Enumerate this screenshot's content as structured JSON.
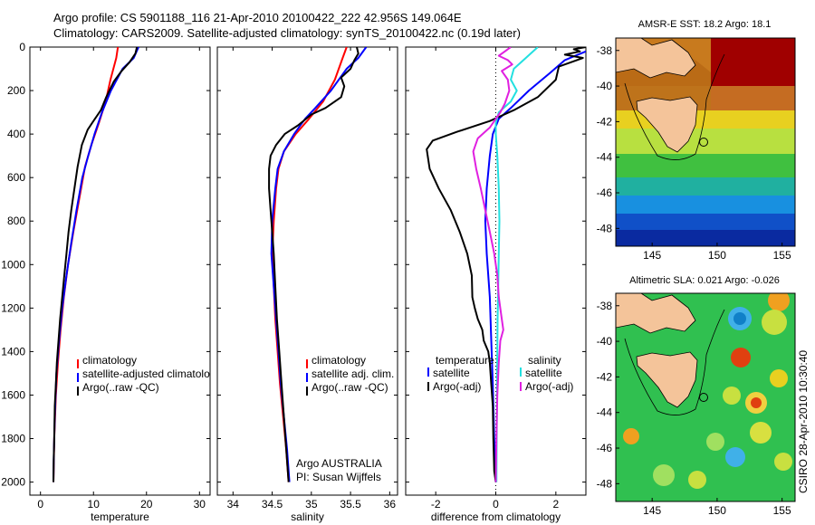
{
  "header": {
    "line1": "Argo profile: CS 5901188_116 21-Apr-2010 20100422_222 42.956S 149.064E",
    "line2": "Climatology: CARS2009. Satellite-adjusted climatology: synTS_20100422.nc (0.19d later)"
  },
  "colors": {
    "climatology": "#ff0000",
    "satellite": "#0000ff",
    "argo": "#000000",
    "sat_salinity": "#22e0e0",
    "argo_salinity": "#e020e0"
  },
  "chart_data": [
    {
      "type": "line",
      "panel": "temperature",
      "xlabel": "temperature",
      "ylabel": "",
      "xlim": [
        -2,
        32
      ],
      "ylim": [
        2060,
        0
      ],
      "y_reversed": true,
      "xticks": [
        0,
        10,
        20,
        30
      ],
      "yticks": [
        0,
        200,
        400,
        600,
        800,
        1000,
        1200,
        1400,
        1600,
        1800,
        2000
      ],
      "legend_position": "lower-right",
      "legend": [
        "climatology",
        "satellite-adjusted climatology",
        "Argo(..raw -QC)"
      ],
      "series": [
        {
          "name": "climatology",
          "color": "#ff0000",
          "points": [
            [
              14.6,
              0
            ],
            [
              14.3,
              50
            ],
            [
              13.2,
              150
            ],
            [
              12.3,
              250
            ],
            [
              11.0,
              350
            ],
            [
              9.6,
              450
            ],
            [
              8.4,
              550
            ],
            [
              7.3,
              700
            ],
            [
              6.2,
              850
            ],
            [
              5.2,
              1000
            ],
            [
              4.4,
              1150
            ],
            [
              3.8,
              1300
            ],
            [
              3.3,
              1450
            ],
            [
              2.9,
              1600
            ],
            [
              2.6,
              1800
            ],
            [
              2.45,
              2000
            ]
          ]
        },
        {
          "name": "satellite-adjusted climatology",
          "color": "#0000ff",
          "points": [
            [
              18.5,
              0
            ],
            [
              17.6,
              50
            ],
            [
              15.5,
              100
            ],
            [
              13.3,
              200
            ],
            [
              11.6,
              300
            ],
            [
              10.2,
              400
            ],
            [
              9.0,
              500
            ],
            [
              7.9,
              600
            ],
            [
              6.8,
              750
            ],
            [
              5.8,
              900
            ],
            [
              4.9,
              1050
            ],
            [
              4.1,
              1200
            ],
            [
              3.5,
              1350
            ],
            [
              3.0,
              1500
            ],
            [
              2.7,
              1700
            ],
            [
              2.5,
              1900
            ],
            [
              2.45,
              2000
            ]
          ]
        },
        {
          "name": "Argo(..raw -QC)",
          "color": "#000000",
          "points": [
            [
              18.2,
              0
            ],
            [
              17.9,
              30
            ],
            [
              16.8,
              70
            ],
            [
              15.3,
              110
            ],
            [
              13.8,
              160
            ],
            [
              12.4,
              230
            ],
            [
              11.4,
              290
            ],
            [
              10.0,
              340
            ],
            [
              8.9,
              380
            ],
            [
              7.8,
              450
            ],
            [
              7.0,
              550
            ],
            [
              6.4,
              650
            ],
            [
              5.8,
              750
            ],
            [
              5.3,
              850
            ],
            [
              4.9,
              950
            ],
            [
              4.5,
              1050
            ],
            [
              4.1,
              1150
            ],
            [
              3.7,
              1250
            ],
            [
              3.4,
              1350
            ],
            [
              3.1,
              1450
            ],
            [
              2.9,
              1550
            ],
            [
              2.7,
              1650
            ],
            [
              2.6,
              1800
            ],
            [
              2.5,
              1900
            ],
            [
              2.45,
              2000
            ]
          ]
        }
      ]
    },
    {
      "type": "line",
      "panel": "salinity",
      "xlabel": "salinity",
      "ylabel": "",
      "xlim": [
        33.8,
        36.1
      ],
      "ylim": [
        2060,
        0
      ],
      "y_reversed": true,
      "xticks": [
        34,
        34.5,
        35,
        35.5,
        36
      ],
      "yticks": [
        0,
        200,
        400,
        600,
        800,
        1000,
        1200,
        1400,
        1600,
        1800,
        2000
      ],
      "legend_position": "lower-right",
      "legend": [
        "climatology",
        "satellite adj. clim.",
        "Argo(..raw -QC)"
      ],
      "annotations": [
        "Argo AUSTRALIA",
        "PI: Susan Wijffels"
      ],
      "series": [
        {
          "name": "climatology",
          "color": "#ff0000",
          "points": [
            [
              35.45,
              0
            ],
            [
              35.4,
              50
            ],
            [
              35.3,
              150
            ],
            [
              35.15,
              250
            ],
            [
              34.97,
              330
            ],
            [
              34.8,
              400
            ],
            [
              34.65,
              480
            ],
            [
              34.58,
              560
            ],
            [
              34.55,
              650
            ],
            [
              34.52,
              800
            ],
            [
              34.5,
              950
            ],
            [
              34.52,
              1100
            ],
            [
              34.54,
              1250
            ],
            [
              34.57,
              1400
            ],
            [
              34.6,
              1550
            ],
            [
              34.64,
              1700
            ],
            [
              34.68,
              1850
            ],
            [
              34.71,
              2000
            ]
          ]
        },
        {
          "name": "satellite adj. clim.",
          "color": "#0000ff",
          "points": [
            [
              35.7,
              0
            ],
            [
              35.6,
              50
            ],
            [
              35.45,
              100
            ],
            [
              35.25,
              200
            ],
            [
              35.05,
              280
            ],
            [
              34.92,
              330
            ],
            [
              34.78,
              400
            ],
            [
              34.65,
              480
            ],
            [
              34.57,
              560
            ],
            [
              34.54,
              650
            ],
            [
              34.5,
              800
            ],
            [
              34.49,
              950
            ],
            [
              34.52,
              1100
            ],
            [
              34.55,
              1250
            ],
            [
              34.58,
              1400
            ],
            [
              34.61,
              1550
            ],
            [
              34.65,
              1700
            ],
            [
              34.69,
              1850
            ],
            [
              34.72,
              2000
            ]
          ]
        },
        {
          "name": "Argo(..raw -QC)",
          "color": "#000000",
          "points": [
            [
              35.58,
              0
            ],
            [
              35.6,
              30
            ],
            [
              35.55,
              60
            ],
            [
              35.5,
              100
            ],
            [
              35.38,
              140
            ],
            [
              35.42,
              180
            ],
            [
              35.38,
              230
            ],
            [
              35.18,
              280
            ],
            [
              35.0,
              310
            ],
            [
              34.83,
              360
            ],
            [
              34.66,
              400
            ],
            [
              34.55,
              450
            ],
            [
              34.48,
              500
            ],
            [
              34.46,
              560
            ],
            [
              34.46,
              650
            ],
            [
              34.48,
              750
            ],
            [
              34.5,
              850
            ],
            [
              34.52,
              950
            ],
            [
              34.54,
              1100
            ],
            [
              34.56,
              1250
            ],
            [
              34.59,
              1400
            ],
            [
              34.62,
              1550
            ],
            [
              34.65,
              1700
            ],
            [
              34.68,
              1850
            ],
            [
              34.71,
              2000
            ]
          ]
        }
      ]
    },
    {
      "type": "line",
      "panel": "difference",
      "xlabel": "difference from climatology",
      "ylabel": "",
      "xlim": [
        -3,
        3
      ],
      "ylim": [
        2060,
        0
      ],
      "y_reversed": true,
      "xticks": [
        -2,
        0,
        2
      ],
      "yticks": [
        0,
        200,
        400,
        600,
        800,
        1000,
        1200,
        1400,
        1600,
        1800,
        2000
      ],
      "zero_line": true,
      "legend_position": "lower-left",
      "legend_temperature": [
        "temperature",
        "satellite",
        "Argo(-adj)"
      ],
      "legend_salinity": [
        "salinity",
        "satellite",
        "Argo(-adj)"
      ],
      "series": [
        {
          "name": "temperature satellite",
          "color": "#0000ff",
          "points": [
            [
              3.0,
              20
            ],
            [
              2.3,
              60
            ],
            [
              1.8,
              120
            ],
            [
              1.1,
              200
            ],
            [
              0.5,
              280
            ],
            [
              0.1,
              330
            ],
            [
              -0.1,
              400
            ],
            [
              -0.2,
              500
            ],
            [
              -0.3,
              650
            ],
            [
              -0.35,
              800
            ],
            [
              -0.3,
              950
            ],
            [
              -0.2,
              1150
            ],
            [
              -0.15,
              1350
            ],
            [
              -0.1,
              1550
            ],
            [
              -0.05,
              1800
            ],
            [
              0.0,
              2000
            ]
          ]
        },
        {
          "name": "temperature Argo(-adj)",
          "color": "#000000",
          "points": [
            [
              3.0,
              0
            ],
            [
              2.6,
              10
            ],
            [
              2.8,
              20
            ],
            [
              2.3,
              35
            ],
            [
              2.9,
              50
            ],
            [
              2.1,
              90
            ],
            [
              2.0,
              150
            ],
            [
              1.4,
              230
            ],
            [
              0.6,
              290
            ],
            [
              -0.2,
              340
            ],
            [
              -1.3,
              390
            ],
            [
              -2.1,
              430
            ],
            [
              -2.3,
              470
            ],
            [
              -2.2,
              560
            ],
            [
              -1.9,
              650
            ],
            [
              -1.5,
              750
            ],
            [
              -1.2,
              850
            ],
            [
              -0.95,
              950
            ],
            [
              -0.8,
              1050
            ],
            [
              -0.78,
              1150
            ],
            [
              -0.7,
              1200
            ],
            [
              -0.6,
              1250
            ],
            [
              -0.45,
              1300
            ],
            [
              -0.4,
              1350
            ],
            [
              -0.25,
              1400
            ],
            [
              -0.2,
              1450
            ],
            [
              -0.15,
              1550
            ],
            [
              -0.1,
              1650
            ],
            [
              -0.08,
              1800
            ],
            [
              -0.05,
              1950
            ],
            [
              0.0,
              2000
            ]
          ]
        },
        {
          "name": "salinity satellite",
          "color": "#22e0e0",
          "points": [
            [
              1.4,
              0
            ],
            [
              1.0,
              50
            ],
            [
              0.6,
              100
            ],
            [
              0.5,
              150
            ],
            [
              0.7,
              200
            ],
            [
              0.5,
              250
            ],
            [
              0.1,
              300
            ],
            [
              0.0,
              350
            ],
            [
              0.0,
              400
            ],
            [
              0.05,
              500
            ],
            [
              0.1,
              650
            ],
            [
              0.12,
              800
            ],
            [
              0.1,
              950
            ],
            [
              0.08,
              1100
            ],
            [
              0.06,
              1250
            ],
            [
              0.05,
              1400
            ],
            [
              0.04,
              1600
            ],
            [
              0.03,
              1800
            ],
            [
              0.02,
              2000
            ]
          ]
        },
        {
          "name": "salinity Argo(-adj)",
          "color": "#e020e0",
          "points": [
            [
              0.5,
              0
            ],
            [
              0.3,
              20
            ],
            [
              0.1,
              40
            ],
            [
              0.4,
              60
            ],
            [
              0.55,
              80
            ],
            [
              0.2,
              110
            ],
            [
              0.4,
              150
            ],
            [
              0.45,
              200
            ],
            [
              0.3,
              260
            ],
            [
              0.15,
              300
            ],
            [
              0.0,
              330
            ],
            [
              -0.2,
              370
            ],
            [
              -0.6,
              420
            ],
            [
              -0.75,
              480
            ],
            [
              -0.65,
              560
            ],
            [
              -0.5,
              650
            ],
            [
              -0.35,
              750
            ],
            [
              -0.2,
              850
            ],
            [
              -0.05,
              950
            ],
            [
              0.05,
              1050
            ],
            [
              0.1,
              1150
            ],
            [
              0.2,
              1250
            ],
            [
              0.25,
              1300
            ],
            [
              0.15,
              1350
            ],
            [
              0.1,
              1450
            ],
            [
              0.05,
              1600
            ],
            [
              0.02,
              1800
            ],
            [
              0.0,
              2000
            ]
          ]
        }
      ]
    },
    {
      "type": "heatmap",
      "panel": "sst-map",
      "title": "AMSR-E SST: 18.2 Argo: 18.1",
      "xlim": [
        142.2,
        156
      ],
      "ylim": [
        -49,
        -37.3
      ],
      "xticks": [
        145,
        150,
        155
      ],
      "yticks": [
        -38,
        -40,
        -42,
        -44,
        -46,
        -48
      ],
      "argo_position": [
        149.064,
        -42.956
      ]
    },
    {
      "type": "heatmap",
      "panel": "sla-map",
      "title": "Altimetric SLA: 0.021 Argo: -0.026",
      "xlim": [
        142.2,
        156
      ],
      "ylim": [
        -49,
        -37.3
      ],
      "xticks": [
        145,
        150,
        155
      ],
      "yticks": [
        -38,
        -40,
        -42,
        -44,
        -46,
        -48
      ],
      "argo_position": [
        149.064,
        -42.956
      ],
      "side_label": "CSIRO 28-Apr-2010 10:30:40"
    }
  ]
}
